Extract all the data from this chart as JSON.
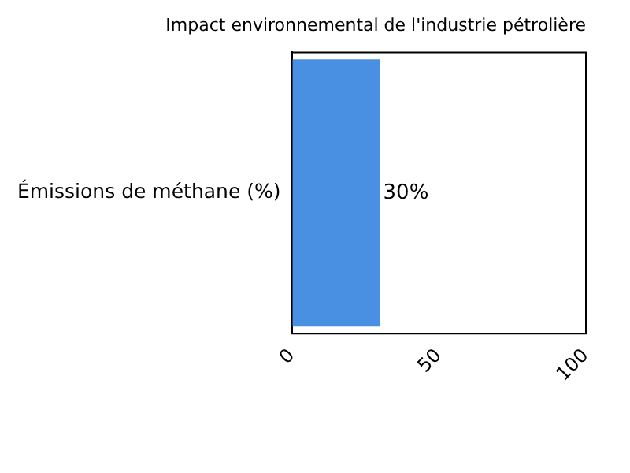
{
  "chart_data": {
    "type": "bar",
    "orientation": "horizontal",
    "title": "Impact environnemental de l'industrie pétrolière",
    "categories": [
      "Émissions de méthane (%)"
    ],
    "values": [
      30
    ],
    "color": "#4a90e2",
    "value_labels": [
      "30%"
    ],
    "xlim": [
      0,
      100
    ],
    "xticks": [
      0,
      50,
      100
    ],
    "grid": false,
    "legend": false
  }
}
